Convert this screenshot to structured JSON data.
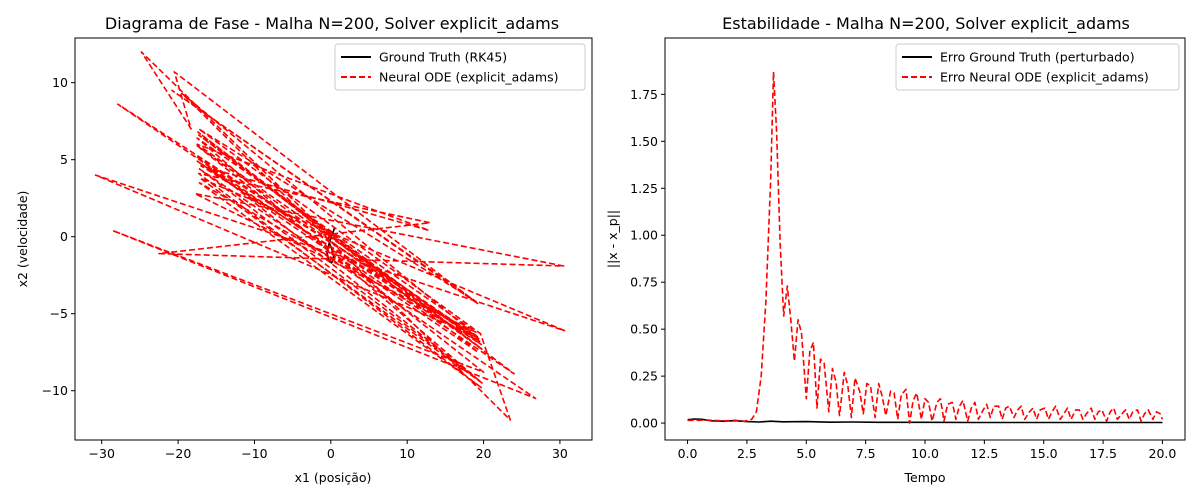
{
  "chart_data": [
    {
      "type": "line",
      "title": "Diagrama de Fase - Malha N=200, Solver explicit_adams",
      "xlabel": "x1 (posição)",
      "ylabel": "x2 (velocidade)",
      "xlim": [
        -33.5,
        34.2
      ],
      "ylim": [
        -13.2,
        12.9
      ],
      "xticks": [
        -30,
        -20,
        -10,
        0,
        10,
        20,
        30
      ],
      "xtick_labels": [
        "−30",
        "−20",
        "−10",
        "0",
        "10",
        "20",
        "30"
      ],
      "yticks": [
        -10,
        -5,
        0,
        5,
        10
      ],
      "ytick_labels": [
        "−10",
        "−5",
        "0",
        "5",
        "10"
      ],
      "grid": false,
      "legend_position": "top-right",
      "series": [
        {
          "name": "Ground Truth (RK45)",
          "color": "#000000",
          "style": "solid",
          "x": [
            0.5,
            0.3,
            -0.2,
            -0.5,
            -0.3,
            0.1,
            0.4,
            0.2,
            -0.2,
            -0.3,
            0.0
          ],
          "y": [
            0.6,
            0.3,
            -0.4,
            -1.0,
            -1.5,
            -1.7,
            -1.4,
            -0.9,
            -0.4,
            -0.1,
            0.1
          ]
        },
        {
          "name": "Neural ODE (explicit_adams)",
          "color": "#ff0000",
          "style": "dashed",
          "x": [
            0.0,
            -24.8,
            -18.3,
            -20.5,
            19.4,
            -20.8,
            19.0,
            -17.3,
            19.6,
            23.5,
            -19.5,
            19.2,
            -27.9,
            24.0,
            -17.3,
            19.7,
            -17.5,
            19.3,
            -17.4,
            19.8,
            -17.5,
            20.0,
            -28.6,
            26.8,
            -17.2,
            19.6,
            -17.6,
            19.2,
            -30.8,
            30.6,
            -17.1,
            19.8,
            -17.5,
            19.0,
            -17.8,
            30.5,
            -22.5,
            13.0,
            -17.3,
            19.7,
            -17.2,
            19.5,
            -17.5,
            12.9,
            -17.0,
            19.6,
            0.0
          ],
          "y": [
            0.0,
            12.0,
            7.0,
            10.7,
            -4.4,
            9.5,
            -4.2,
            7.0,
            -6.3,
            -11.9,
            9.3,
            -6.5,
            8.6,
            -8.9,
            6.6,
            -7.0,
            4.9,
            -7.5,
            6.8,
            -7.3,
            5.9,
            -8.8,
            0.4,
            -10.5,
            4.4,
            -9.4,
            5.2,
            -6.5,
            4.0,
            -6.1,
            3.8,
            -9.5,
            6.4,
            -6.2,
            2.8,
            -1.9,
            -1.1,
            0.9,
            4.1,
            -9.8,
            3.5,
            -6.8,
            6.0,
            0.4,
            4.6,
            -6.7,
            0.0
          ]
        }
      ]
    },
    {
      "type": "line",
      "title": "Estabilidade - Malha N=200, Solver explicit_adams",
      "xlabel": "Tempo",
      "ylabel": "||x - x_p||",
      "xlim": [
        -0.95,
        20.95
      ],
      "ylim": [
        -0.09,
        2.05
      ],
      "xticks": [
        0,
        2.5,
        5,
        7.5,
        10,
        12.5,
        15,
        17.5,
        20
      ],
      "xtick_labels": [
        "0.0",
        "2.5",
        "5.0",
        "7.5",
        "10.0",
        "12.5",
        "15.0",
        "17.5",
        "20.0"
      ],
      "yticks": [
        0,
        0.25,
        0.5,
        0.75,
        1,
        1.25,
        1.5,
        1.75
      ],
      "ytick_labels": [
        "0.00",
        "0.25",
        "0.50",
        "0.75",
        "1.00",
        "1.25",
        "1.50",
        "1.75"
      ],
      "grid": false,
      "legend_position": "top-right",
      "series": [
        {
          "name": "Erro Ground Truth (perturbado)",
          "color": "#000000",
          "style": "solid",
          "x": [
            0,
            0.3,
            0.6,
            1.0,
            1.5,
            2.0,
            2.5,
            3.0,
            3.5,
            4.0,
            5.0,
            6.0,
            7.0,
            8.0,
            10.0,
            12.0,
            15.0,
            17.5,
            20.0
          ],
          "y": [
            0.018,
            0.022,
            0.02,
            0.012,
            0.01,
            0.013,
            0.008,
            0.006,
            0.01,
            0.007,
            0.008,
            0.005,
            0.006,
            0.004,
            0.004,
            0.003,
            0.003,
            0.003,
            0.003
          ]
        },
        {
          "name": "Erro Neural ODE (explicit_adams)",
          "color": "#ff0000",
          "style": "dashed",
          "x": [
            0,
            0.4,
            0.8,
            1.2,
            1.6,
            2.0,
            2.4,
            2.7,
            2.9,
            3.1,
            3.3,
            3.5,
            3.62,
            3.75,
            3.9,
            4.05,
            4.2,
            4.35,
            4.5,
            4.65,
            4.8,
            5.0,
            5.15,
            5.3,
            5.45,
            5.6,
            5.75,
            5.95,
            6.1,
            6.25,
            6.4,
            6.6,
            6.75,
            6.9,
            7.05,
            7.25,
            7.4,
            7.55,
            7.7,
            7.9,
            8.05,
            8.2,
            8.35,
            8.55,
            8.7,
            8.85,
            9.0,
            9.2,
            9.35,
            9.5,
            9.65,
            9.85,
            10.0,
            10.15,
            10.3,
            10.5,
            10.65,
            10.8,
            10.95,
            11.15,
            11.3,
            11.45,
            11.6,
            11.8,
            11.95,
            12.1,
            12.25,
            12.45,
            12.6,
            12.75,
            12.9,
            13.1,
            13.25,
            13.4,
            13.55,
            13.75,
            13.9,
            14.05,
            14.2,
            14.4,
            14.55,
            14.7,
            14.85,
            15.05,
            15.2,
            15.35,
            15.5,
            15.7,
            15.85,
            16.0,
            16.15,
            16.35,
            16.5,
            16.65,
            16.8,
            17.0,
            17.15,
            17.3,
            17.45,
            17.65,
            17.8,
            17.95,
            18.1,
            18.3,
            18.45,
            18.6,
            18.75,
            18.95,
            19.1,
            19.25,
            19.4,
            19.6,
            19.75,
            19.9,
            20.0
          ],
          "y": [
            0.015,
            0.015,
            0.016,
            0.014,
            0.012,
            0.015,
            0.01,
            0.02,
            0.06,
            0.25,
            0.65,
            1.3,
            1.87,
            1.55,
            0.95,
            0.57,
            0.73,
            0.55,
            0.33,
            0.55,
            0.48,
            0.13,
            0.38,
            0.43,
            0.08,
            0.34,
            0.32,
            0.06,
            0.29,
            0.22,
            0.04,
            0.27,
            0.2,
            0.03,
            0.24,
            0.17,
            0.05,
            0.21,
            0.2,
            0.03,
            0.21,
            0.14,
            0.04,
            0.17,
            0.16,
            0.02,
            0.15,
            0.18,
            0.0,
            0.12,
            0.16,
            0.02,
            0.13,
            0.11,
            0.01,
            0.11,
            0.13,
            0.01,
            0.1,
            0.11,
            0.02,
            0.09,
            0.12,
            0.01,
            0.08,
            0.11,
            0.02,
            0.07,
            0.1,
            0.03,
            0.09,
            0.09,
            0.02,
            0.08,
            0.09,
            0.03,
            0.07,
            0.09,
            0.02,
            0.06,
            0.08,
            0.02,
            0.07,
            0.08,
            0.02,
            0.06,
            0.09,
            0.02,
            0.05,
            0.08,
            0.02,
            0.07,
            0.07,
            0.02,
            0.05,
            0.08,
            0.02,
            0.06,
            0.07,
            0.01,
            0.06,
            0.08,
            0.02,
            0.05,
            0.07,
            0.02,
            0.06,
            0.07,
            0.01,
            0.05,
            0.07,
            0.02,
            0.06,
            0.05,
            0.02
          ]
        }
      ]
    }
  ]
}
